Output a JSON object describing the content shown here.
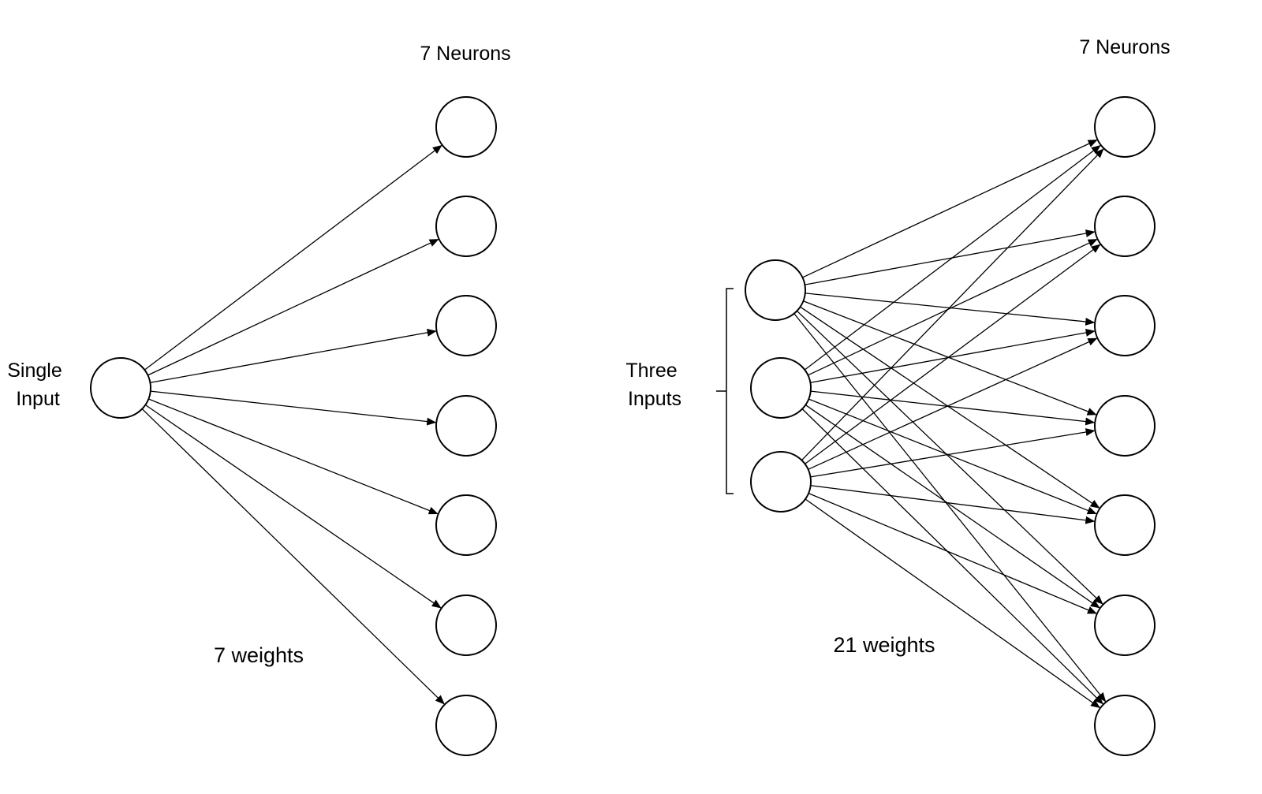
{
  "left_network": {
    "layer_label": "7 Neurons",
    "input_label": [
      "Single",
      "Input"
    ],
    "weights_label": "7 weights",
    "input_count": 1,
    "output_count": 7
  },
  "right_network": {
    "layer_label": "7 Neurons",
    "input_label": [
      "Three",
      "Inputs"
    ],
    "weights_label": "21 weights",
    "input_count": 3,
    "output_count": 7
  },
  "colors": {
    "stroke": "#000000",
    "background": "#ffffff"
  }
}
